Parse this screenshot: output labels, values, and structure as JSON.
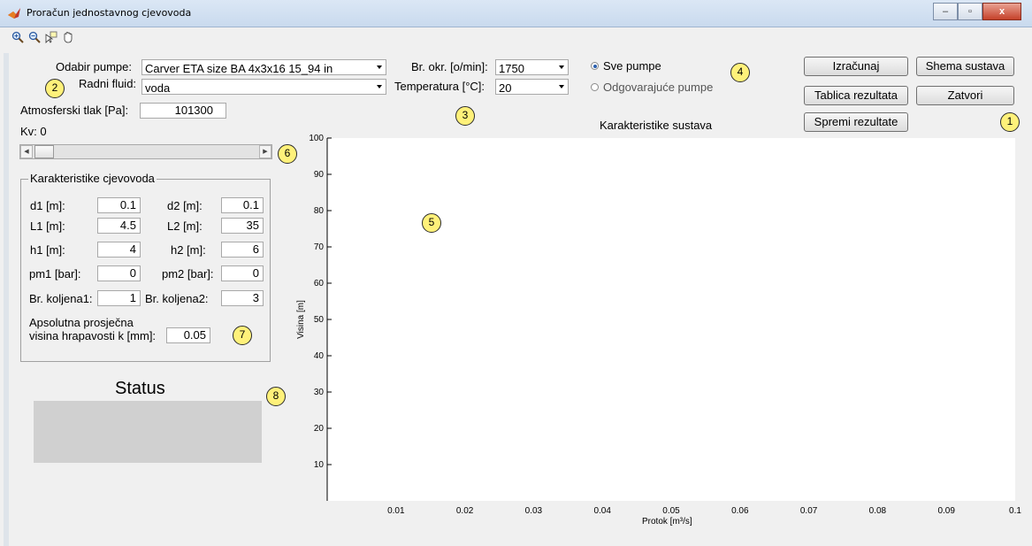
{
  "window": {
    "title": "Proračun jednostavnog cjevovoda",
    "minimize": "–",
    "maximize": "▫",
    "close": "x"
  },
  "toolbar": {
    "icons": [
      "zoom-in-icon",
      "zoom-out-icon",
      "data-cursor-icon",
      "pan-hand-icon"
    ]
  },
  "pump": {
    "label": "Odabir pumpe:",
    "value": "Carver ETA size BA 4x3x16 15_94 in"
  },
  "fluid": {
    "label": "Radni fluid:",
    "value": "voda"
  },
  "speed": {
    "label": "Br. okr. [o/min]:",
    "value": "1750"
  },
  "temp": {
    "label": "Temperatura [°C]:",
    "value": "20"
  },
  "atm": {
    "label": "Atmosferski tlak [Pa]:",
    "value": "101300"
  },
  "kv": {
    "label": "Kv: 0",
    "value": 0
  },
  "filter": {
    "all": "Sve pumpe",
    "matching": "Odgovarajuće pumpe",
    "selected": "all"
  },
  "buttons": {
    "calc": "Izračunaj",
    "scheme": "Shema sustava",
    "table": "Tablica rezultata",
    "close": "Zatvori",
    "save": "Spremi rezultate"
  },
  "pipe": {
    "title": "Karakteristike cjevovoda",
    "d1_label": "d1 [m]:",
    "d1": "0.1",
    "d2_label": "d2 [m]:",
    "d2": "0.1",
    "L1_label": "L1 [m]:",
    "L1": "4.5",
    "L2_label": "L2 [m]:",
    "L2": "35",
    "h1_label": "h1 [m]:",
    "h1": "4",
    "h2_label": "h2 [m]:",
    "h2": "6",
    "pm1_label": "pm1 [bar]:",
    "pm1": "0",
    "pm2_label": "pm2 [bar]:",
    "pm2": "0",
    "bk1_label": "Br. koljena1:",
    "bk1": "1",
    "bk2_label": "Br. koljena2:",
    "bk2": "3",
    "k_label_1": "Apsolutna prosječna",
    "k_label_2": "visina hrapavosti k [mm]:",
    "k": "0.05"
  },
  "status": {
    "title": "Status"
  },
  "callouts": [
    "1",
    "2",
    "3",
    "4",
    "5",
    "6",
    "7",
    "8"
  ],
  "chart_data": {
    "type": "line",
    "title": "Karakteristike sustava",
    "xlabel": "Protok [m³/s]",
    "ylabel": "Visina [m]",
    "xlim": [
      0,
      0.1
    ],
    "ylim": [
      0,
      100
    ],
    "xticks": [
      "0.01",
      "0.02",
      "0.03",
      "0.04",
      "0.05",
      "0.06",
      "0.07",
      "0.08",
      "0.09",
      "0.1"
    ],
    "yticks": [
      "10",
      "20",
      "30",
      "40",
      "50",
      "60",
      "70",
      "80",
      "90",
      "100"
    ],
    "series": []
  }
}
